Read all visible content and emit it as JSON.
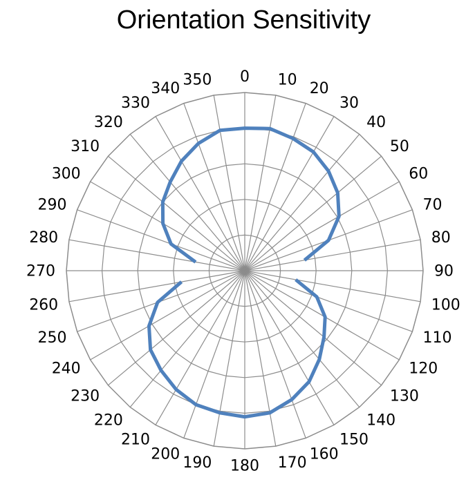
{
  "chart_data": {
    "type": "radar",
    "title": "Orientation Sensitivity",
    "categories": [
      "0",
      "10",
      "20",
      "30",
      "40",
      "50",
      "60",
      "70",
      "80",
      "90",
      "100",
      "110",
      "120",
      "130",
      "140",
      "150",
      "160",
      "170",
      "180",
      "190",
      "200",
      "210",
      "220",
      "230",
      "240",
      "250",
      "260",
      "270",
      "280",
      "290",
      "300",
      "310",
      "320",
      "330",
      "340",
      "350"
    ],
    "series": [
      {
        "values": [
          0.8,
          0.81,
          0.79,
          0.77,
          0.73,
          0.68,
          0.61,
          0.5,
          0.34,
          null,
          0.29,
          0.43,
          0.52,
          0.58,
          0.65,
          0.72,
          0.77,
          0.81,
          0.82,
          0.81,
          0.8,
          0.77,
          0.73,
          0.69,
          0.62,
          0.52,
          0.36,
          null,
          0.28,
          0.44,
          0.53,
          0.6,
          0.65,
          0.71,
          0.76,
          0.8
        ],
        "color": "#4f81bd"
      }
    ],
    "rlim": [
      0,
      1
    ],
    "rings": 5,
    "grid": true,
    "legend": "none"
  }
}
